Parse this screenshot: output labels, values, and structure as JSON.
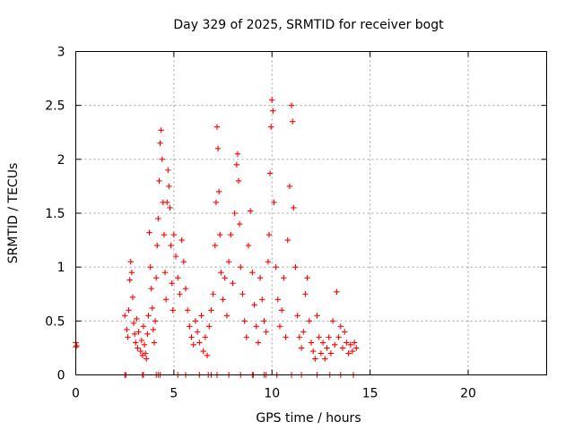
{
  "chart_data": {
    "type": "scatter",
    "title": "Day 329 of 2025, SRMTID for receiver bogt",
    "xlabel": "GPS time / hours",
    "ylabel": "SRMTID / TECUs",
    "xlim": [
      0,
      24
    ],
    "ylim": [
      0,
      3
    ],
    "x_ticks": [
      "0",
      "5",
      "10",
      "15",
      "20"
    ],
    "y_ticks": [
      "0",
      "0.5",
      "1",
      "1.5",
      "2",
      "2.5",
      "3"
    ],
    "grid": true,
    "marker": "+",
    "color": "#ff0000",
    "series": [
      {
        "name": "SRMTID",
        "points": [
          [
            0.0,
            0.26
          ],
          [
            0.0,
            0.3
          ],
          [
            0.05,
            0.27
          ],
          [
            2.5,
            0.55
          ],
          [
            2.6,
            0.42
          ],
          [
            2.65,
            0.35
          ],
          [
            2.7,
            0.6
          ],
          [
            2.75,
            0.88
          ],
          [
            2.8,
            1.05
          ],
          [
            2.85,
            0.95
          ],
          [
            2.9,
            0.72
          ],
          [
            2.95,
            0.48
          ],
          [
            3.0,
            0.38
          ],
          [
            3.05,
            0.3
          ],
          [
            3.1,
            0.52
          ],
          [
            3.15,
            0.25
          ],
          [
            3.2,
            0.4
          ],
          [
            3.3,
            0.22
          ],
          [
            3.35,
            0.32
          ],
          [
            3.4,
            0.18
          ],
          [
            3.45,
            0.45
          ],
          [
            3.5,
            0.28
          ],
          [
            3.55,
            0.2
          ],
          [
            3.6,
            0.15
          ],
          [
            3.65,
            0.38
          ],
          [
            3.7,
            0.55
          ],
          [
            3.75,
            1.32
          ],
          [
            3.8,
            1.0
          ],
          [
            3.85,
            0.8
          ],
          [
            3.9,
            0.62
          ],
          [
            3.95,
            0.42
          ],
          [
            4.0,
            0.3
          ],
          [
            4.05,
            0.5
          ],
          [
            4.1,
            0.9
          ],
          [
            4.15,
            1.2
          ],
          [
            4.2,
            1.45
          ],
          [
            4.25,
            1.8
          ],
          [
            4.3,
            2.15
          ],
          [
            4.35,
            2.27
          ],
          [
            4.4,
            2.0
          ],
          [
            4.45,
            1.6
          ],
          [
            4.5,
            1.3
          ],
          [
            4.55,
            0.95
          ],
          [
            4.6,
            0.7
          ],
          [
            4.65,
            1.6
          ],
          [
            4.7,
            1.9
          ],
          [
            4.75,
            1.75
          ],
          [
            4.8,
            1.55
          ],
          [
            4.85,
            1.2
          ],
          [
            4.9,
            0.85
          ],
          [
            4.95,
            0.6
          ],
          [
            5.0,
            1.3
          ],
          [
            5.1,
            1.1
          ],
          [
            5.2,
            0.9
          ],
          [
            5.3,
            0.75
          ],
          [
            5.4,
            1.25
          ],
          [
            5.5,
            1.05
          ],
          [
            5.6,
            0.8
          ],
          [
            5.7,
            0.6
          ],
          [
            5.8,
            0.45
          ],
          [
            5.9,
            0.35
          ],
          [
            6.0,
            0.28
          ],
          [
            6.1,
            0.5
          ],
          [
            6.2,
            0.4
          ],
          [
            6.3,
            0.3
          ],
          [
            6.4,
            0.55
          ],
          [
            6.5,
            0.22
          ],
          [
            6.6,
            0.35
          ],
          [
            6.7,
            0.18
          ],
          [
            6.8,
            0.45
          ],
          [
            6.9,
            0.6
          ],
          [
            7.0,
            0.75
          ],
          [
            7.1,
            1.2
          ],
          [
            7.15,
            1.6
          ],
          [
            7.2,
            2.3
          ],
          [
            7.25,
            2.1
          ],
          [
            7.3,
            1.7
          ],
          [
            7.35,
            1.3
          ],
          [
            7.4,
            0.95
          ],
          [
            7.5,
            0.7
          ],
          [
            7.6,
            0.9
          ],
          [
            7.7,
            0.55
          ],
          [
            7.8,
            1.05
          ],
          [
            7.9,
            1.3
          ],
          [
            8.0,
            0.85
          ],
          [
            8.1,
            1.5
          ],
          [
            8.2,
            1.95
          ],
          [
            8.25,
            2.05
          ],
          [
            8.3,
            1.8
          ],
          [
            8.35,
            1.4
          ],
          [
            8.4,
            1.0
          ],
          [
            8.5,
            0.75
          ],
          [
            8.6,
            0.5
          ],
          [
            8.7,
            0.35
          ],
          [
            8.8,
            1.2
          ],
          [
            8.9,
            1.52
          ],
          [
            9.0,
            0.95
          ],
          [
            9.1,
            0.65
          ],
          [
            9.2,
            0.45
          ],
          [
            9.3,
            0.3
          ],
          [
            9.4,
            0.9
          ],
          [
            9.5,
            0.7
          ],
          [
            9.6,
            0.5
          ],
          [
            9.7,
            0.4
          ],
          [
            9.8,
            1.05
          ],
          [
            9.85,
            1.3
          ],
          [
            9.9,
            1.87
          ],
          [
            9.95,
            2.3
          ],
          [
            10.0,
            2.55
          ],
          [
            10.05,
            2.45
          ],
          [
            10.1,
            1.6
          ],
          [
            10.2,
            1.0
          ],
          [
            10.3,
            0.7
          ],
          [
            10.4,
            0.45
          ],
          [
            10.5,
            0.6
          ],
          [
            10.6,
            0.9
          ],
          [
            10.7,
            0.35
          ],
          [
            10.8,
            1.25
          ],
          [
            10.9,
            1.75
          ],
          [
            11.0,
            2.5
          ],
          [
            11.05,
            2.35
          ],
          [
            11.1,
            1.55
          ],
          [
            11.2,
            1.0
          ],
          [
            11.3,
            0.55
          ],
          [
            11.4,
            0.35
          ],
          [
            11.5,
            0.25
          ],
          [
            11.6,
            0.4
          ],
          [
            11.7,
            0.75
          ],
          [
            11.8,
            0.9
          ],
          [
            11.9,
            0.5
          ],
          [
            12.0,
            0.3
          ],
          [
            12.1,
            0.22
          ],
          [
            12.2,
            0.15
          ],
          [
            12.3,
            0.55
          ],
          [
            12.4,
            0.35
          ],
          [
            12.5,
            0.2
          ],
          [
            12.6,
            0.3
          ],
          [
            12.7,
            0.15
          ],
          [
            12.8,
            0.25
          ],
          [
            12.9,
            0.35
          ],
          [
            13.0,
            0.2
          ],
          [
            13.1,
            0.5
          ],
          [
            13.2,
            0.28
          ],
          [
            13.3,
            0.77
          ],
          [
            13.4,
            0.35
          ],
          [
            13.5,
            0.45
          ],
          [
            13.6,
            0.25
          ],
          [
            13.7,
            0.4
          ],
          [
            13.8,
            0.3
          ],
          [
            13.9,
            0.2
          ],
          [
            14.0,
            0.28
          ],
          [
            14.1,
            0.22
          ],
          [
            14.2,
            0.3
          ],
          [
            14.3,
            0.25
          ],
          [
            2.5,
            0.0
          ],
          [
            2.55,
            0.0
          ],
          [
            3.4,
            0.0
          ],
          [
            3.45,
            0.0
          ],
          [
            4.1,
            0.0
          ],
          [
            4.2,
            0.0
          ],
          [
            4.3,
            0.0
          ],
          [
            5.2,
            0.0
          ],
          [
            5.6,
            0.0
          ],
          [
            6.3,
            0.0
          ],
          [
            6.75,
            0.0
          ],
          [
            6.9,
            0.0
          ],
          [
            7.2,
            0.0
          ],
          [
            7.8,
            0.0
          ],
          [
            8.4,
            0.0
          ],
          [
            9.0,
            0.0
          ],
          [
            9.05,
            0.0
          ],
          [
            9.6,
            0.0
          ],
          [
            9.7,
            0.0
          ],
          [
            10.25,
            0.0
          ],
          [
            11.0,
            0.0
          ],
          [
            11.5,
            0.0
          ],
          [
            12.3,
            0.0
          ],
          [
            12.95,
            0.0
          ],
          [
            13.5,
            0.0
          ],
          [
            14.15,
            0.0
          ]
        ]
      }
    ]
  }
}
